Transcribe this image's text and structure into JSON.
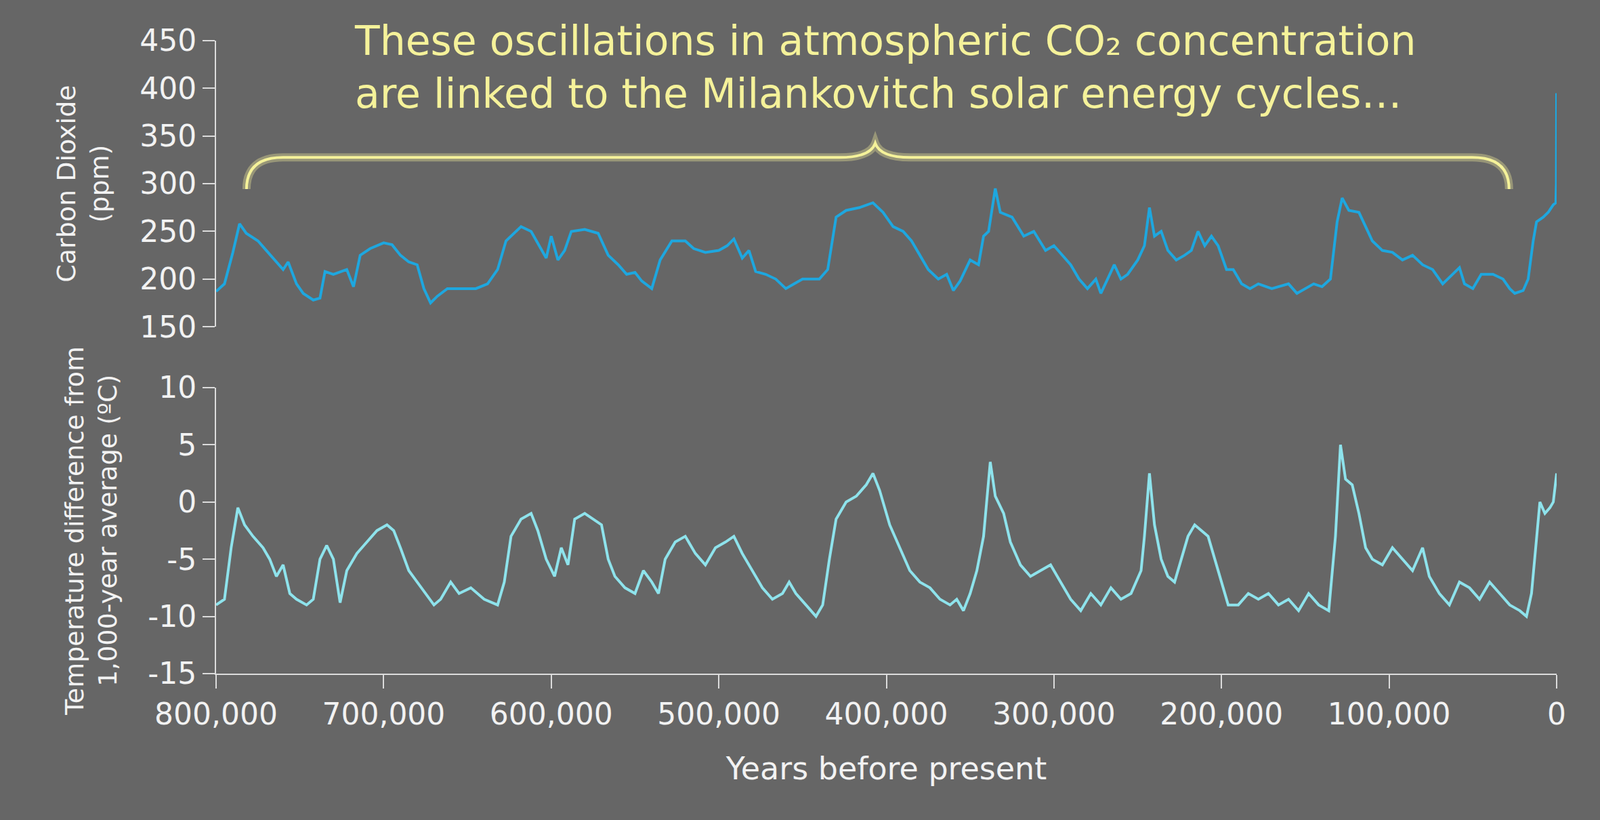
{
  "chart_data": [
    {
      "type": "line",
      "annotations": [
        {
          "text": [
            "These oscillations in atmospheric CO₂ concentration",
            "are linked to the Milankovitch solar energy cycles…"
          ]
        }
      ],
      "ylabel": [
        "Carbon Dioxide",
        "(ppm)"
      ],
      "x": [
        800000,
        795000,
        790000,
        786000,
        782000,
        775000,
        770000,
        765000,
        760000,
        757000,
        752000,
        748000,
        742000,
        738000,
        735000,
        730000,
        722000,
        718000,
        714000,
        708000,
        700000,
        695000,
        690000,
        685000,
        680000,
        676000,
        672000,
        668000,
        662000,
        655000,
        645000,
        638000,
        632000,
        627000,
        618000,
        612000,
        607000,
        603000,
        600000,
        596000,
        592000,
        588000,
        580000,
        572000,
        566000,
        560000,
        555000,
        550000,
        546000,
        540000,
        535000,
        528000,
        520000,
        515000,
        508000,
        500000,
        495000,
        491000,
        486000,
        482000,
        478000,
        472000,
        466000,
        460000,
        455000,
        450000,
        440000,
        435000,
        430000,
        424000,
        416000,
        408000,
        402000,
        396000,
        390000,
        385000,
        380000,
        375000,
        369000,
        364000,
        360000,
        356000,
        350000,
        345000,
        342000,
        339000,
        335000,
        332000,
        325000,
        318000,
        312000,
        305000,
        300000,
        295000,
        290000,
        285000,
        280000,
        275000,
        272000,
        268000,
        264000,
        260000,
        256000,
        250000,
        246000,
        243000,
        240000,
        236000,
        232000,
        227000,
        222000,
        218000,
        214000,
        210000,
        206000,
        202000,
        197000,
        193000,
        188000,
        183000,
        178000,
        170000,
        160000,
        155000,
        150000,
        145000,
        140000,
        135000,
        131000,
        128000,
        124000,
        118000,
        114000,
        110000,
        104000,
        98000,
        92000,
        86000,
        80000,
        74000,
        68000,
        62000,
        58000,
        55000,
        50000,
        45000,
        38000,
        32000,
        28000,
        25000,
        20000,
        17000,
        14000,
        12000,
        8000,
        5000,
        2000,
        500,
        200,
        0
      ],
      "values": [
        187,
        195,
        228,
        258,
        248,
        240,
        230,
        220,
        210,
        218,
        195,
        185,
        178,
        180,
        208,
        205,
        210,
        192,
        225,
        232,
        238,
        236,
        225,
        218,
        215,
        190,
        175,
        182,
        190,
        190,
        190,
        195,
        210,
        240,
        255,
        250,
        235,
        222,
        245,
        220,
        230,
        250,
        252,
        248,
        225,
        215,
        205,
        207,
        198,
        190,
        220,
        240,
        240,
        232,
        228,
        230,
        235,
        242,
        222,
        230,
        208,
        205,
        200,
        190,
        195,
        200,
        200,
        210,
        265,
        272,
        275,
        280,
        270,
        255,
        250,
        240,
        225,
        210,
        200,
        205,
        188,
        198,
        220,
        215,
        245,
        250,
        295,
        270,
        265,
        245,
        250,
        230,
        235,
        225,
        215,
        200,
        190,
        200,
        185,
        200,
        215,
        200,
        205,
        220,
        235,
        275,
        245,
        250,
        230,
        220,
        225,
        230,
        250,
        235,
        245,
        235,
        210,
        210,
        195,
        190,
        195,
        190,
        195,
        185,
        190,
        195,
        192,
        200,
        260,
        285,
        272,
        270,
        255,
        240,
        230,
        228,
        220,
        225,
        215,
        210,
        195,
        205,
        212,
        195,
        190,
        205,
        205,
        200,
        190,
        185,
        188,
        200,
        240,
        260,
        265,
        270,
        278,
        280,
        300,
        395
      ],
      "color": "#1ea7df",
      "xlim": [
        800000,
        0
      ],
      "ylim": [
        150,
        450
      ],
      "yticks": [
        150,
        200,
        250,
        300,
        350,
        400,
        450
      ],
      "tick_labels": "y",
      "grid": false
    },
    {
      "type": "line",
      "ylabel": [
        "Temperature difference from",
        "1,000-year average (ºC)"
      ],
      "xlabel": "Years before present",
      "x": [
        800000,
        795000,
        791000,
        787000,
        783000,
        778000,
        772000,
        768000,
        764000,
        760000,
        756000,
        752000,
        746000,
        742000,
        738000,
        734000,
        730000,
        726000,
        722000,
        716000,
        710000,
        704000,
        698000,
        694000,
        690000,
        685000,
        680000,
        675000,
        670000,
        666000,
        660000,
        655000,
        648000,
        640000,
        632000,
        628000,
        624000,
        618000,
        612000,
        608000,
        603000,
        598000,
        594000,
        590000,
        586000,
        580000,
        575000,
        570000,
        566000,
        562000,
        556000,
        550000,
        545000,
        540000,
        536000,
        532000,
        526000,
        520000,
        514000,
        508000,
        502000,
        496000,
        491000,
        486000,
        480000,
        474000,
        468000,
        462000,
        458000,
        454000,
        448000,
        442000,
        438000,
        434000,
        430000,
        424000,
        418000,
        412000,
        408000,
        404000,
        398000,
        392000,
        386000,
        380000,
        374000,
        368000,
        362000,
        358000,
        354000,
        350000,
        346000,
        342000,
        338000,
        335000,
        330000,
        326000,
        320000,
        314000,
        308000,
        302000,
        296000,
        290000,
        284000,
        278000,
        272000,
        266000,
        260000,
        254000,
        248000,
        246000,
        243000,
        240000,
        236000,
        232000,
        228000,
        224000,
        220000,
        216000,
        212000,
        208000,
        204000,
        200000,
        196000,
        190000,
        184000,
        178000,
        172000,
        166000,
        160000,
        154000,
        148000,
        142000,
        136000,
        132000,
        129000,
        126000,
        122000,
        118000,
        114000,
        110000,
        104000,
        98000,
        92000,
        86000,
        80000,
        76000,
        70000,
        64000,
        58000,
        52000,
        46000,
        40000,
        34000,
        28000,
        22000,
        18000,
        15000,
        12000,
        10000,
        7000,
        4000,
        2000,
        0
      ],
      "values": [
        -9,
        -8.5,
        -4,
        -0.5,
        -2,
        -3,
        -4,
        -5,
        -6.5,
        -5.5,
        -8,
        -8.5,
        -9,
        -8.5,
        -5,
        -3.8,
        -5,
        -8.8,
        -6,
        -4.5,
        -3.5,
        -2.5,
        -2,
        -2.5,
        -4,
        -6,
        -7,
        -8,
        -9,
        -8.5,
        -7,
        -8,
        -7.5,
        -8.5,
        -9,
        -7,
        -3,
        -1.5,
        -1,
        -2.5,
        -5,
        -6.5,
        -4,
        -5.5,
        -1.5,
        -1,
        -1.5,
        -2,
        -5,
        -6.5,
        -7.5,
        -8,
        -6,
        -7,
        -8,
        -5,
        -3.5,
        -3,
        -4.5,
        -5.5,
        -4,
        -3.5,
        -3,
        -4.5,
        -6,
        -7.5,
        -8.5,
        -8,
        -7,
        -8,
        -9,
        -10,
        -9,
        -5,
        -1.5,
        0,
        0.5,
        1.5,
        2.5,
        1,
        -2,
        -4,
        -6,
        -7,
        -7.5,
        -8.5,
        -9,
        -8.5,
        -9.5,
        -8,
        -6,
        -3,
        3.5,
        0.5,
        -1,
        -3.5,
        -5.5,
        -6.5,
        -6,
        -5.5,
        -7,
        -8.5,
        -9.5,
        -8,
        -9,
        -7.5,
        -8.5,
        -8,
        -6,
        -3,
        2.5,
        -2,
        -5,
        -6.5,
        -7,
        -5,
        -3,
        -2,
        -2.5,
        -3,
        -5,
        -7,
        -9,
        -9,
        -8,
        -8.5,
        -8,
        -9,
        -8.5,
        -9.5,
        -8,
        -9,
        -9.5,
        -3,
        5,
        2,
        1.5,
        -1,
        -4,
        -5,
        -5.5,
        -4,
        -5,
        -6,
        -4,
        -6.5,
        -8,
        -9,
        -7,
        -7.5,
        -8.5,
        -7,
        -8,
        -9,
        -9.5,
        -10,
        -8,
        -3,
        0,
        -1,
        -0.5,
        0,
        2.5
      ],
      "color": "#8ee3ec",
      "xlim": [
        800000,
        0
      ],
      "xticks": [
        {
          "value": 800000,
          "label": "800,000"
        },
        {
          "value": 700000,
          "label": "700,000"
        },
        {
          "value": 600000,
          "label": "600,000"
        },
        {
          "value": 500000,
          "label": "500,000"
        },
        {
          "value": 400000,
          "label": "400,000"
        },
        {
          "value": 300000,
          "label": "300,000"
        },
        {
          "value": 200000,
          "label": "200,000"
        },
        {
          "value": 100000,
          "label": "100,000"
        },
        0
      ],
      "ylim": [
        -15,
        10
      ],
      "yticks": [
        -15,
        -10,
        -5,
        0,
        5,
        10
      ],
      "grid": false
    }
  ]
}
